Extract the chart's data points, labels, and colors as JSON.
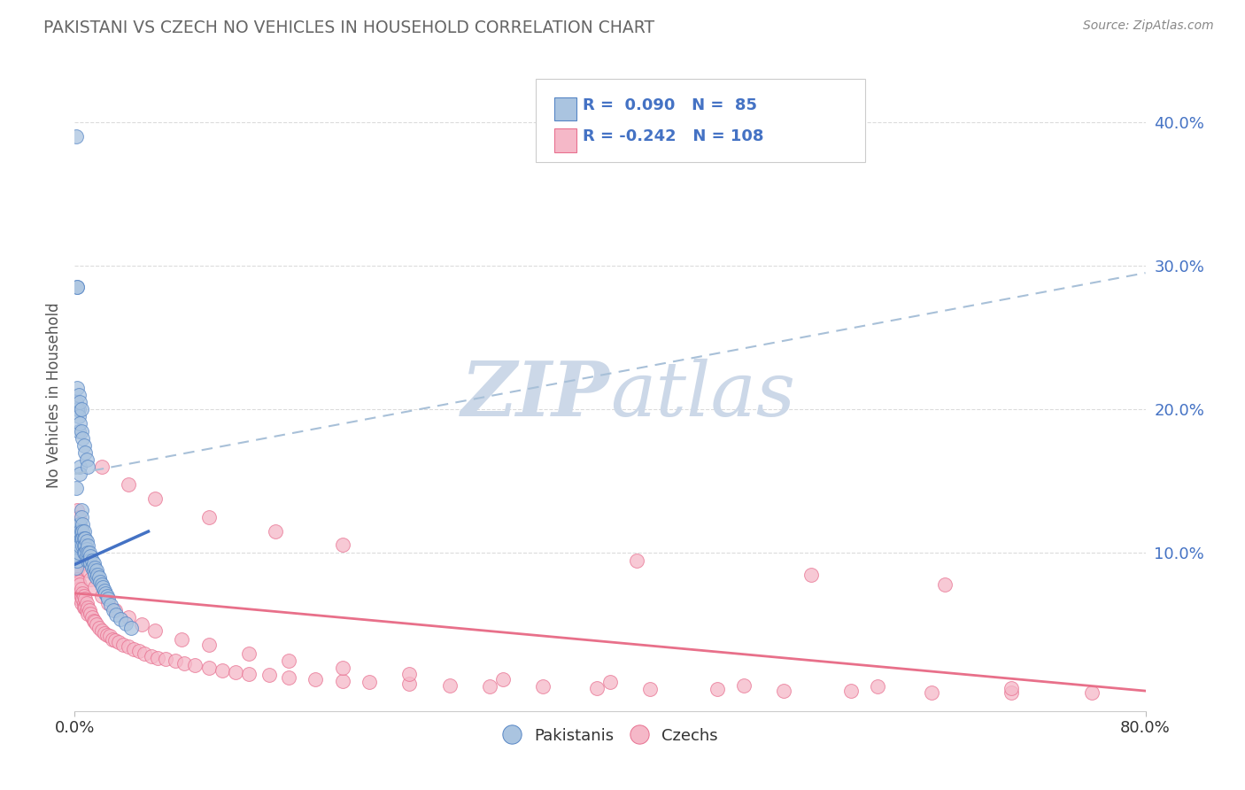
{
  "title": "PAKISTANI VS CZECH NO VEHICLES IN HOUSEHOLD CORRELATION CHART",
  "source": "Source: ZipAtlas.com",
  "ylabel": "No Vehicles in Household",
  "xmin": 0.0,
  "xmax": 0.8,
  "ymin": -0.01,
  "ymax": 0.43,
  "pakistani_R": 0.09,
  "pakistani_N": 85,
  "czech_R": -0.242,
  "czech_N": 108,
  "pakistani_color": "#aac4e0",
  "czech_color": "#f5b8c8",
  "pakistani_edge_color": "#5585c5",
  "czech_edge_color": "#e87090",
  "pakistani_line_color": "#4472c4",
  "czech_line_color": "#e8708a",
  "dashed_line_color": "#a8c0d8",
  "legend_text_color": "#4472c4",
  "title_color": "#666666",
  "source_color": "#888888",
  "watermark_color": "#ccd8e8",
  "background_color": "#ffffff",
  "grid_color": "#d8d8d8",
  "ytick_color": "#4472c4",
  "xtick_color": "#333333",
  "pak_x": [
    0.001,
    0.001,
    0.001,
    0.001,
    0.001,
    0.001,
    0.002,
    0.002,
    0.002,
    0.002,
    0.002,
    0.002,
    0.003,
    0.003,
    0.003,
    0.003,
    0.003,
    0.004,
    0.004,
    0.004,
    0.004,
    0.004,
    0.005,
    0.005,
    0.005,
    0.005,
    0.006,
    0.006,
    0.006,
    0.006,
    0.007,
    0.007,
    0.007,
    0.007,
    0.008,
    0.008,
    0.008,
    0.009,
    0.009,
    0.009,
    0.01,
    0.01,
    0.01,
    0.011,
    0.011,
    0.012,
    0.012,
    0.013,
    0.013,
    0.014,
    0.014,
    0.015,
    0.015,
    0.016,
    0.016,
    0.017,
    0.018,
    0.019,
    0.02,
    0.021,
    0.022,
    0.023,
    0.024,
    0.025,
    0.027,
    0.029,
    0.031,
    0.034,
    0.038,
    0.042,
    0.001,
    0.002,
    0.003,
    0.004,
    0.005,
    0.006,
    0.007,
    0.008,
    0.009,
    0.01,
    0.002,
    0.003,
    0.004,
    0.005,
    0.001
  ],
  "pak_y": [
    0.39,
    0.115,
    0.11,
    0.105,
    0.095,
    0.09,
    0.285,
    0.285,
    0.115,
    0.11,
    0.105,
    0.095,
    0.2,
    0.185,
    0.12,
    0.115,
    0.1,
    0.16,
    0.155,
    0.12,
    0.115,
    0.105,
    0.13,
    0.125,
    0.115,
    0.11,
    0.12,
    0.115,
    0.11,
    0.105,
    0.115,
    0.11,
    0.105,
    0.1,
    0.11,
    0.105,
    0.1,
    0.108,
    0.103,
    0.098,
    0.105,
    0.1,
    0.095,
    0.1,
    0.095,
    0.098,
    0.093,
    0.095,
    0.09,
    0.093,
    0.088,
    0.09,
    0.085,
    0.088,
    0.083,
    0.085,
    0.083,
    0.08,
    0.078,
    0.076,
    0.074,
    0.072,
    0.07,
    0.068,
    0.064,
    0.06,
    0.057,
    0.054,
    0.051,
    0.048,
    0.205,
    0.2,
    0.195,
    0.19,
    0.185,
    0.18,
    0.175,
    0.17,
    0.165,
    0.16,
    0.215,
    0.21,
    0.205,
    0.2,
    0.145
  ],
  "czech_x": [
    0.001,
    0.001,
    0.002,
    0.002,
    0.002,
    0.003,
    0.003,
    0.003,
    0.004,
    0.004,
    0.004,
    0.005,
    0.005,
    0.005,
    0.006,
    0.006,
    0.007,
    0.007,
    0.007,
    0.008,
    0.008,
    0.009,
    0.009,
    0.01,
    0.01,
    0.011,
    0.012,
    0.013,
    0.014,
    0.015,
    0.016,
    0.018,
    0.02,
    0.022,
    0.024,
    0.026,
    0.028,
    0.03,
    0.033,
    0.036,
    0.04,
    0.044,
    0.048,
    0.052,
    0.057,
    0.062,
    0.068,
    0.075,
    0.082,
    0.09,
    0.1,
    0.11,
    0.12,
    0.13,
    0.145,
    0.16,
    0.18,
    0.2,
    0.22,
    0.25,
    0.28,
    0.31,
    0.35,
    0.39,
    0.43,
    0.48,
    0.53,
    0.58,
    0.64,
    0.7,
    0.76,
    0.002,
    0.003,
    0.004,
    0.005,
    0.006,
    0.007,
    0.008,
    0.009,
    0.01,
    0.012,
    0.015,
    0.02,
    0.025,
    0.03,
    0.04,
    0.05,
    0.06,
    0.08,
    0.1,
    0.13,
    0.16,
    0.2,
    0.25,
    0.32,
    0.4,
    0.5,
    0.6,
    0.7,
    0.42,
    0.55,
    0.65,
    0.02,
    0.04,
    0.06,
    0.1,
    0.15,
    0.2
  ],
  "czech_y": [
    0.09,
    0.085,
    0.088,
    0.082,
    0.078,
    0.08,
    0.075,
    0.072,
    0.078,
    0.072,
    0.068,
    0.075,
    0.07,
    0.065,
    0.072,
    0.068,
    0.07,
    0.065,
    0.062,
    0.068,
    0.062,
    0.065,
    0.06,
    0.062,
    0.058,
    0.06,
    0.058,
    0.055,
    0.053,
    0.052,
    0.05,
    0.048,
    0.046,
    0.044,
    0.043,
    0.042,
    0.04,
    0.039,
    0.038,
    0.036,
    0.035,
    0.033,
    0.032,
    0.03,
    0.028,
    0.027,
    0.026,
    0.025,
    0.023,
    0.022,
    0.02,
    0.018,
    0.017,
    0.016,
    0.015,
    0.013,
    0.012,
    0.011,
    0.01,
    0.009,
    0.008,
    0.007,
    0.007,
    0.006,
    0.005,
    0.005,
    0.004,
    0.004,
    0.003,
    0.003,
    0.003,
    0.13,
    0.125,
    0.118,
    0.112,
    0.108,
    0.103,
    0.098,
    0.093,
    0.088,
    0.082,
    0.076,
    0.07,
    0.065,
    0.06,
    0.055,
    0.05,
    0.046,
    0.04,
    0.036,
    0.03,
    0.025,
    0.02,
    0.016,
    0.012,
    0.01,
    0.008,
    0.007,
    0.006,
    0.095,
    0.085,
    0.078,
    0.16,
    0.148,
    0.138,
    0.125,
    0.115,
    0.106
  ],
  "pak_trend_x": [
    0.0,
    0.055
  ],
  "pak_trend_y": [
    0.092,
    0.115
  ],
  "czech_trend_x": [
    0.0,
    0.8
  ],
  "czech_trend_y": [
    0.072,
    0.004
  ],
  "dashed_trend_x": [
    0.0,
    0.8
  ],
  "dashed_trend_y": [
    0.155,
    0.295
  ]
}
